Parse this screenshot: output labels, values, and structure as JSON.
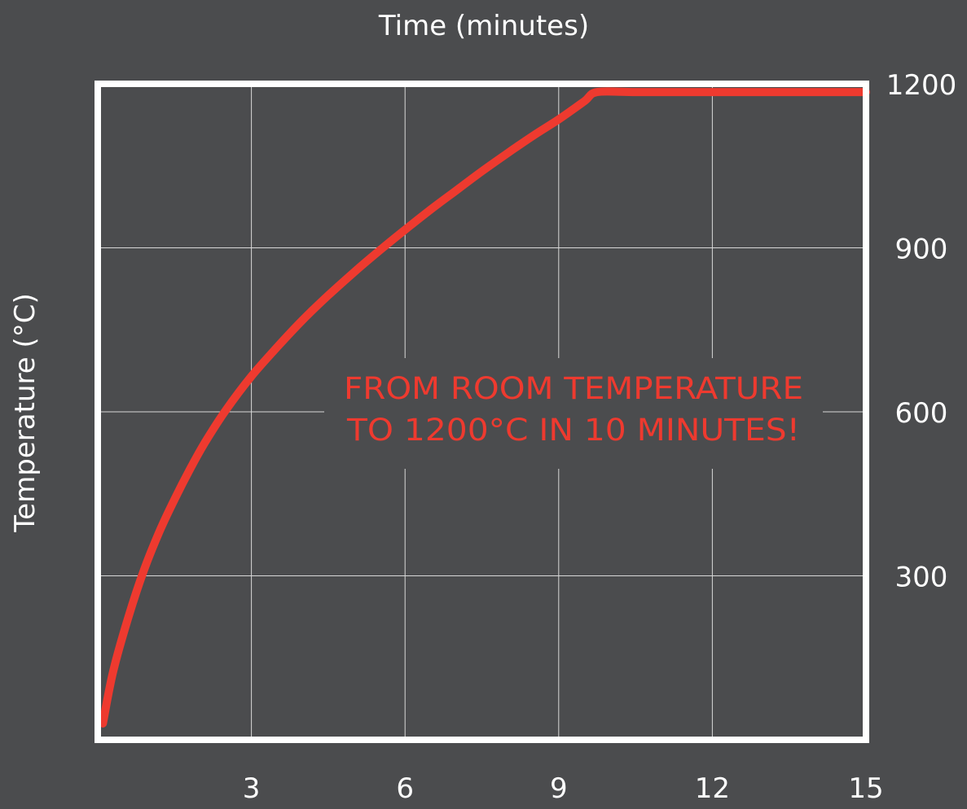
{
  "chart_data": {
    "type": "line",
    "title": "",
    "xlabel": "Time (minutes)",
    "ylabel": "Temperature (°C)",
    "xlim": [
      0,
      15
    ],
    "ylim": [
      0,
      1200
    ],
    "x_ticks": [
      3,
      6,
      9,
      12,
      15
    ],
    "y_ticks": [
      300,
      600,
      900,
      1200
    ],
    "x_tick_labels": [
      "3",
      "6",
      "9",
      "12",
      "15"
    ],
    "y_tick_labels": [
      "300",
      "600",
      "900",
      "1200"
    ],
    "grid": true,
    "annotation": {
      "line1": "FROM ROOM TEMPERATURE",
      "line2": "TO 1200°C IN 10 MINUTES!"
    },
    "series": [
      {
        "color": "#ee3a2f",
        "x": [
          0.1,
          0.3,
          0.6,
          0.9,
          1.2,
          1.5,
          1.8,
          2.1,
          2.5,
          3.0,
          3.5,
          4.0,
          4.5,
          5.0,
          5.5,
          6.0,
          6.5,
          7.0,
          7.5,
          8.0,
          8.5,
          9.0,
          9.5,
          9.75,
          10.5,
          12.0,
          13.5,
          15.0
        ],
        "y": [
          30,
          125,
          225,
          310,
          380,
          440,
          495,
          545,
          603,
          665,
          718,
          768,
          813,
          855,
          895,
          933,
          970,
          1005,
          1040,
          1073,
          1105,
          1135,
          1168,
          1185,
          1185,
          1185,
          1185,
          1185
        ]
      }
    ]
  },
  "colors": {
    "background": "#4b4c4e",
    "frame": "#ffffff",
    "grid": "#d8d8d8",
    "curve": "#ee3a2f",
    "label_text": "#ffffff"
  }
}
